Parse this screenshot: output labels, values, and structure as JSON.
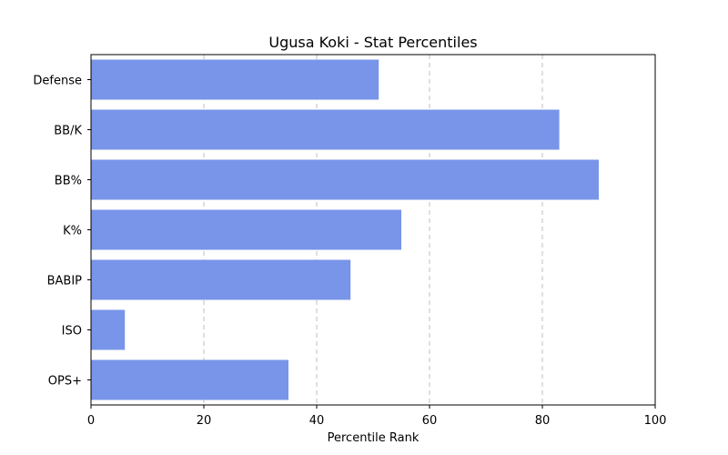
{
  "chart_data": {
    "type": "bar",
    "orientation": "horizontal",
    "title": "Ugusa Koki - Stat Percentiles",
    "xlabel": "Percentile Rank",
    "ylabel": "",
    "categories": [
      "OPS+",
      "ISO",
      "BABIP",
      "K%",
      "BB%",
      "BB/K",
      "Defense"
    ],
    "values": [
      35,
      6,
      46,
      55,
      90,
      83,
      51
    ],
    "xlim": [
      0,
      100
    ],
    "xticks": [
      "0",
      "20",
      "40",
      "60",
      "80",
      "100"
    ],
    "grid": "x-axis dashed",
    "legend": "none",
    "bar_color": "#7895e9"
  }
}
